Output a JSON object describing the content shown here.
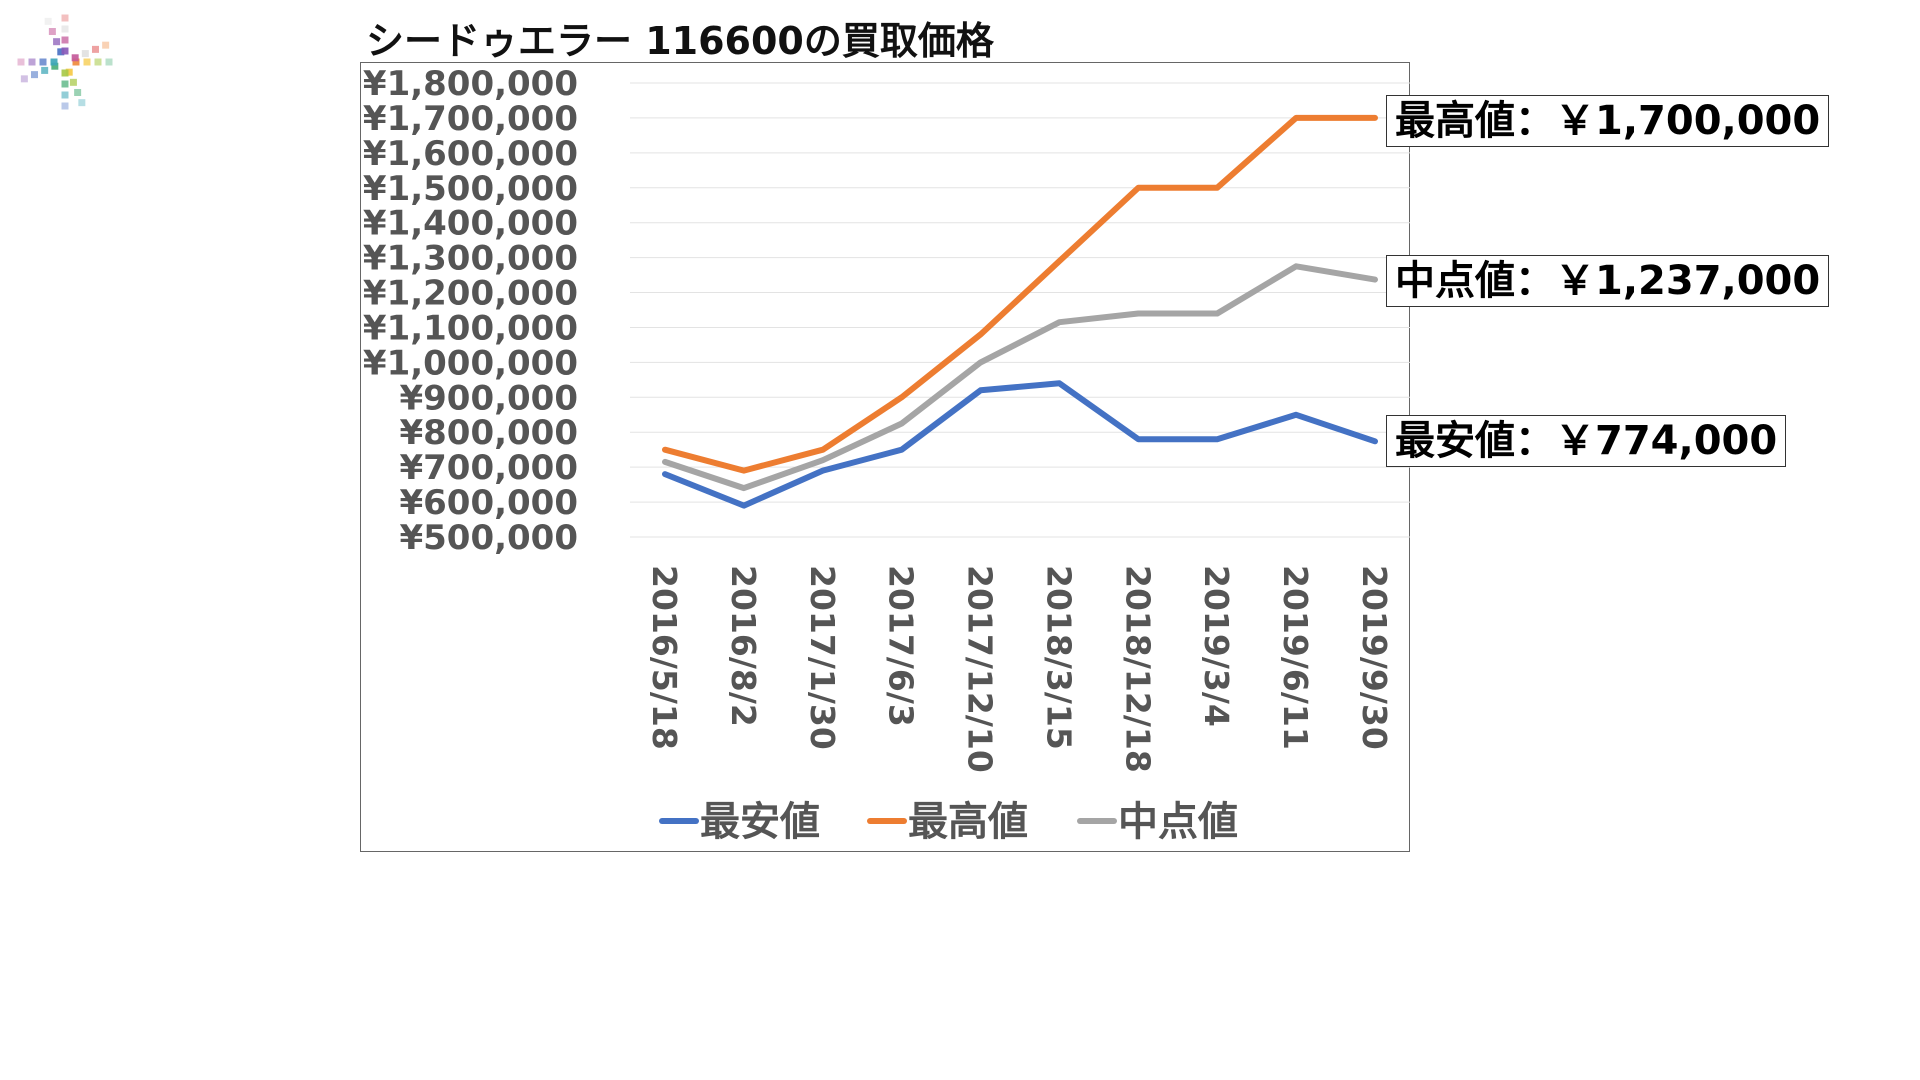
{
  "page": {
    "title": "シードゥエラー 116600の買取価格"
  },
  "logo": {
    "icon": "color-burst-logo"
  },
  "callouts": {
    "max": "最高値：￥1,700,000",
    "mid": "中点値：￥1,237,000",
    "min": "最安値：￥774,000"
  },
  "chart_data": {
    "type": "line",
    "title": "",
    "xlabel": "",
    "ylabel": "",
    "categories": [
      "2016/5/18",
      "2016/8/2",
      "2017/1/30",
      "2017/6/3",
      "2017/12/10",
      "2018/3/15",
      "2018/12/18",
      "2019/3/4",
      "2019/6/11",
      "2019/9/30"
    ],
    "y_tick_labels": [
      "¥500,000",
      "¥600,000",
      "¥700,000",
      "¥800,000",
      "¥900,000",
      "¥1,000,000",
      "¥1,100,000",
      "¥1,200,000",
      "¥1,300,000",
      "¥1,400,000",
      "¥1,500,000",
      "¥1,600,000",
      "¥1,700,000",
      "¥1,800,000"
    ],
    "y_ticks": [
      500000,
      600000,
      700000,
      800000,
      900000,
      1000000,
      1100000,
      1200000,
      1300000,
      1400000,
      1500000,
      1600000,
      1700000,
      1800000
    ],
    "ylim": [
      500000,
      1800000
    ],
    "grid": true,
    "legend_position": "bottom",
    "series": [
      {
        "name": "最安値",
        "color": "#4472C4",
        "values": [
          680000,
          590000,
          690000,
          750000,
          920000,
          940000,
          780000,
          780000,
          850000,
          774000
        ]
      },
      {
        "name": "最高値",
        "color": "#ED7D31",
        "values": [
          750000,
          690000,
          750000,
          900000,
          1080000,
          1290000,
          1500000,
          1500000,
          1700000,
          1700000
        ]
      },
      {
        "name": "中点値",
        "color": "#A5A5A5",
        "values": [
          715000,
          640000,
          720000,
          825000,
          1000000,
          1115000,
          1140000,
          1140000,
          1275000,
          1237000
        ]
      }
    ]
  }
}
